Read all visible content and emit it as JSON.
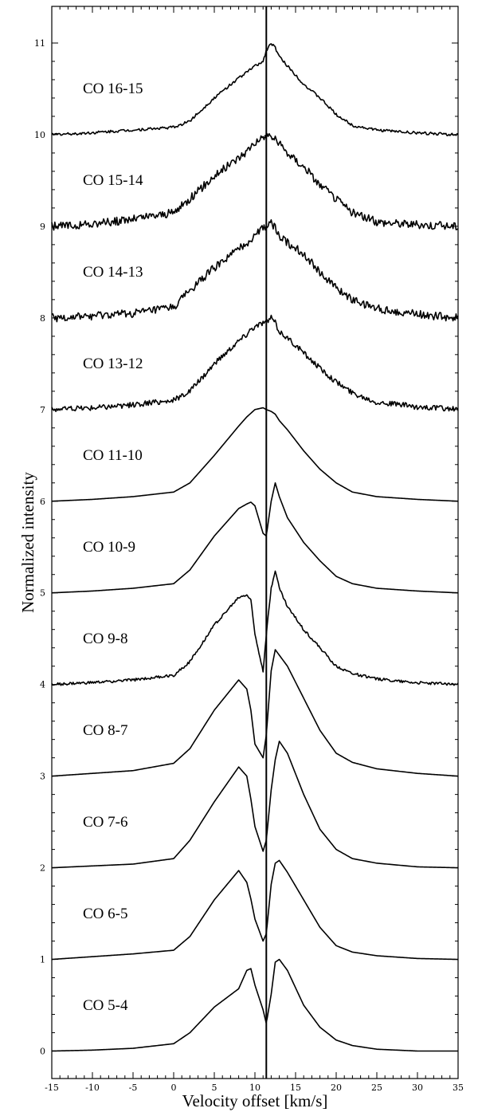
{
  "chart_data": {
    "type": "line",
    "title": "",
    "xlabel": "Velocity offset [km/s]",
    "ylabel": "Normalized intensity",
    "xlim": [
      -15,
      35
    ],
    "ylim": [
      -0.3,
      11.4
    ],
    "xticks": [
      -15,
      -10,
      -5,
      0,
      5,
      10,
      15,
      20,
      25,
      30,
      35
    ],
    "yticks": [
      0,
      1,
      2,
      3,
      4,
      5,
      6,
      7,
      8,
      9,
      10,
      11
    ],
    "reference_line_x": 11.4,
    "grid": false,
    "legend": "none",
    "x": [
      -15,
      -10,
      -5,
      0,
      2,
      5,
      8,
      9,
      9.5,
      10,
      11,
      11.4,
      12,
      12.5,
      13,
      14,
      16,
      18,
      20,
      22,
      25,
      30,
      35
    ],
    "series": [
      {
        "name": "CO 5-4",
        "offset": 0,
        "noise": 0,
        "values": [
          0.0,
          0.01,
          0.03,
          0.08,
          0.2,
          0.48,
          0.68,
          0.88,
          0.9,
          0.72,
          0.45,
          0.3,
          0.62,
          0.97,
          1.0,
          0.88,
          0.5,
          0.26,
          0.12,
          0.06,
          0.02,
          0.0,
          0.0
        ]
      },
      {
        "name": "CO 6-5",
        "offset": 1,
        "noise": 0,
        "values": [
          0.0,
          0.03,
          0.06,
          0.1,
          0.25,
          0.65,
          0.97,
          0.84,
          0.66,
          0.44,
          0.2,
          0.28,
          0.82,
          1.05,
          1.08,
          0.95,
          0.65,
          0.35,
          0.15,
          0.08,
          0.04,
          0.01,
          0.0
        ]
      },
      {
        "name": "CO 7-6",
        "offset": 2,
        "noise": 0,
        "values": [
          0.0,
          0.02,
          0.04,
          0.1,
          0.3,
          0.72,
          1.1,
          1.0,
          0.75,
          0.45,
          0.18,
          0.3,
          0.85,
          1.18,
          1.38,
          1.25,
          0.8,
          0.42,
          0.2,
          0.1,
          0.05,
          0.01,
          0.0
        ]
      },
      {
        "name": "CO 8-7",
        "offset": 3,
        "noise": 0,
        "values": [
          0.0,
          0.03,
          0.06,
          0.14,
          0.3,
          0.72,
          1.05,
          0.95,
          0.72,
          0.35,
          0.2,
          0.45,
          1.15,
          1.38,
          1.32,
          1.2,
          0.85,
          0.5,
          0.25,
          0.15,
          0.08,
          0.03,
          0.0
        ]
      },
      {
        "name": "CO 9-8",
        "offset": 4,
        "noise": 0.015,
        "values": [
          0.0,
          0.02,
          0.05,
          0.1,
          0.25,
          0.65,
          0.95,
          0.98,
          0.92,
          0.55,
          0.15,
          0.55,
          1.05,
          1.25,
          1.05,
          0.85,
          0.6,
          0.4,
          0.2,
          0.12,
          0.06,
          0.02,
          0.0
        ]
      },
      {
        "name": "CO 10-9",
        "offset": 5,
        "noise": 0,
        "values": [
          0.0,
          0.02,
          0.05,
          0.1,
          0.25,
          0.62,
          0.92,
          0.97,
          0.99,
          0.95,
          0.65,
          0.62,
          1.0,
          1.2,
          1.05,
          0.82,
          0.55,
          0.35,
          0.18,
          0.1,
          0.05,
          0.02,
          0.0
        ]
      },
      {
        "name": "CO 11-10",
        "offset": 6,
        "noise": 0,
        "values": [
          0.0,
          0.02,
          0.05,
          0.1,
          0.2,
          0.5,
          0.82,
          0.92,
          0.96,
          1.0,
          1.02,
          1.0,
          0.98,
          0.95,
          0.88,
          0.78,
          0.55,
          0.35,
          0.2,
          0.1,
          0.05,
          0.02,
          0.0
        ]
      },
      {
        "name": "CO 13-12",
        "offset": 7,
        "noise": 0.03,
        "values": [
          0.0,
          0.02,
          0.05,
          0.1,
          0.2,
          0.5,
          0.75,
          0.82,
          0.88,
          0.9,
          0.95,
          0.95,
          1.0,
          0.95,
          0.85,
          0.78,
          0.62,
          0.45,
          0.3,
          0.18,
          0.08,
          0.03,
          0.0
        ]
      },
      {
        "name": "CO 14-13",
        "offset": 8,
        "noise": 0.045,
        "values": [
          0.0,
          0.02,
          0.05,
          0.12,
          0.3,
          0.55,
          0.75,
          0.82,
          0.85,
          0.92,
          0.98,
          1.0,
          1.05,
          0.98,
          0.9,
          0.82,
          0.7,
          0.5,
          0.32,
          0.2,
          0.1,
          0.04,
          0.0
        ]
      },
      {
        "name": "CO 15-14",
        "offset": 9,
        "noise": 0.045,
        "values": [
          0.0,
          0.02,
          0.08,
          0.15,
          0.3,
          0.55,
          0.75,
          0.82,
          0.88,
          0.92,
          0.95,
          1.0,
          0.98,
          0.95,
          0.9,
          0.8,
          0.65,
          0.45,
          0.3,
          0.15,
          0.05,
          0.02,
          0.0
        ]
      },
      {
        "name": "CO 16-15",
        "offset": 10,
        "noise": 0.015,
        "values": [
          0.0,
          0.02,
          0.05,
          0.08,
          0.15,
          0.4,
          0.62,
          0.68,
          0.72,
          0.75,
          0.8,
          0.92,
          1.0,
          0.95,
          0.85,
          0.75,
          0.55,
          0.4,
          0.22,
          0.1,
          0.05,
          0.02,
          0.0
        ]
      }
    ]
  }
}
